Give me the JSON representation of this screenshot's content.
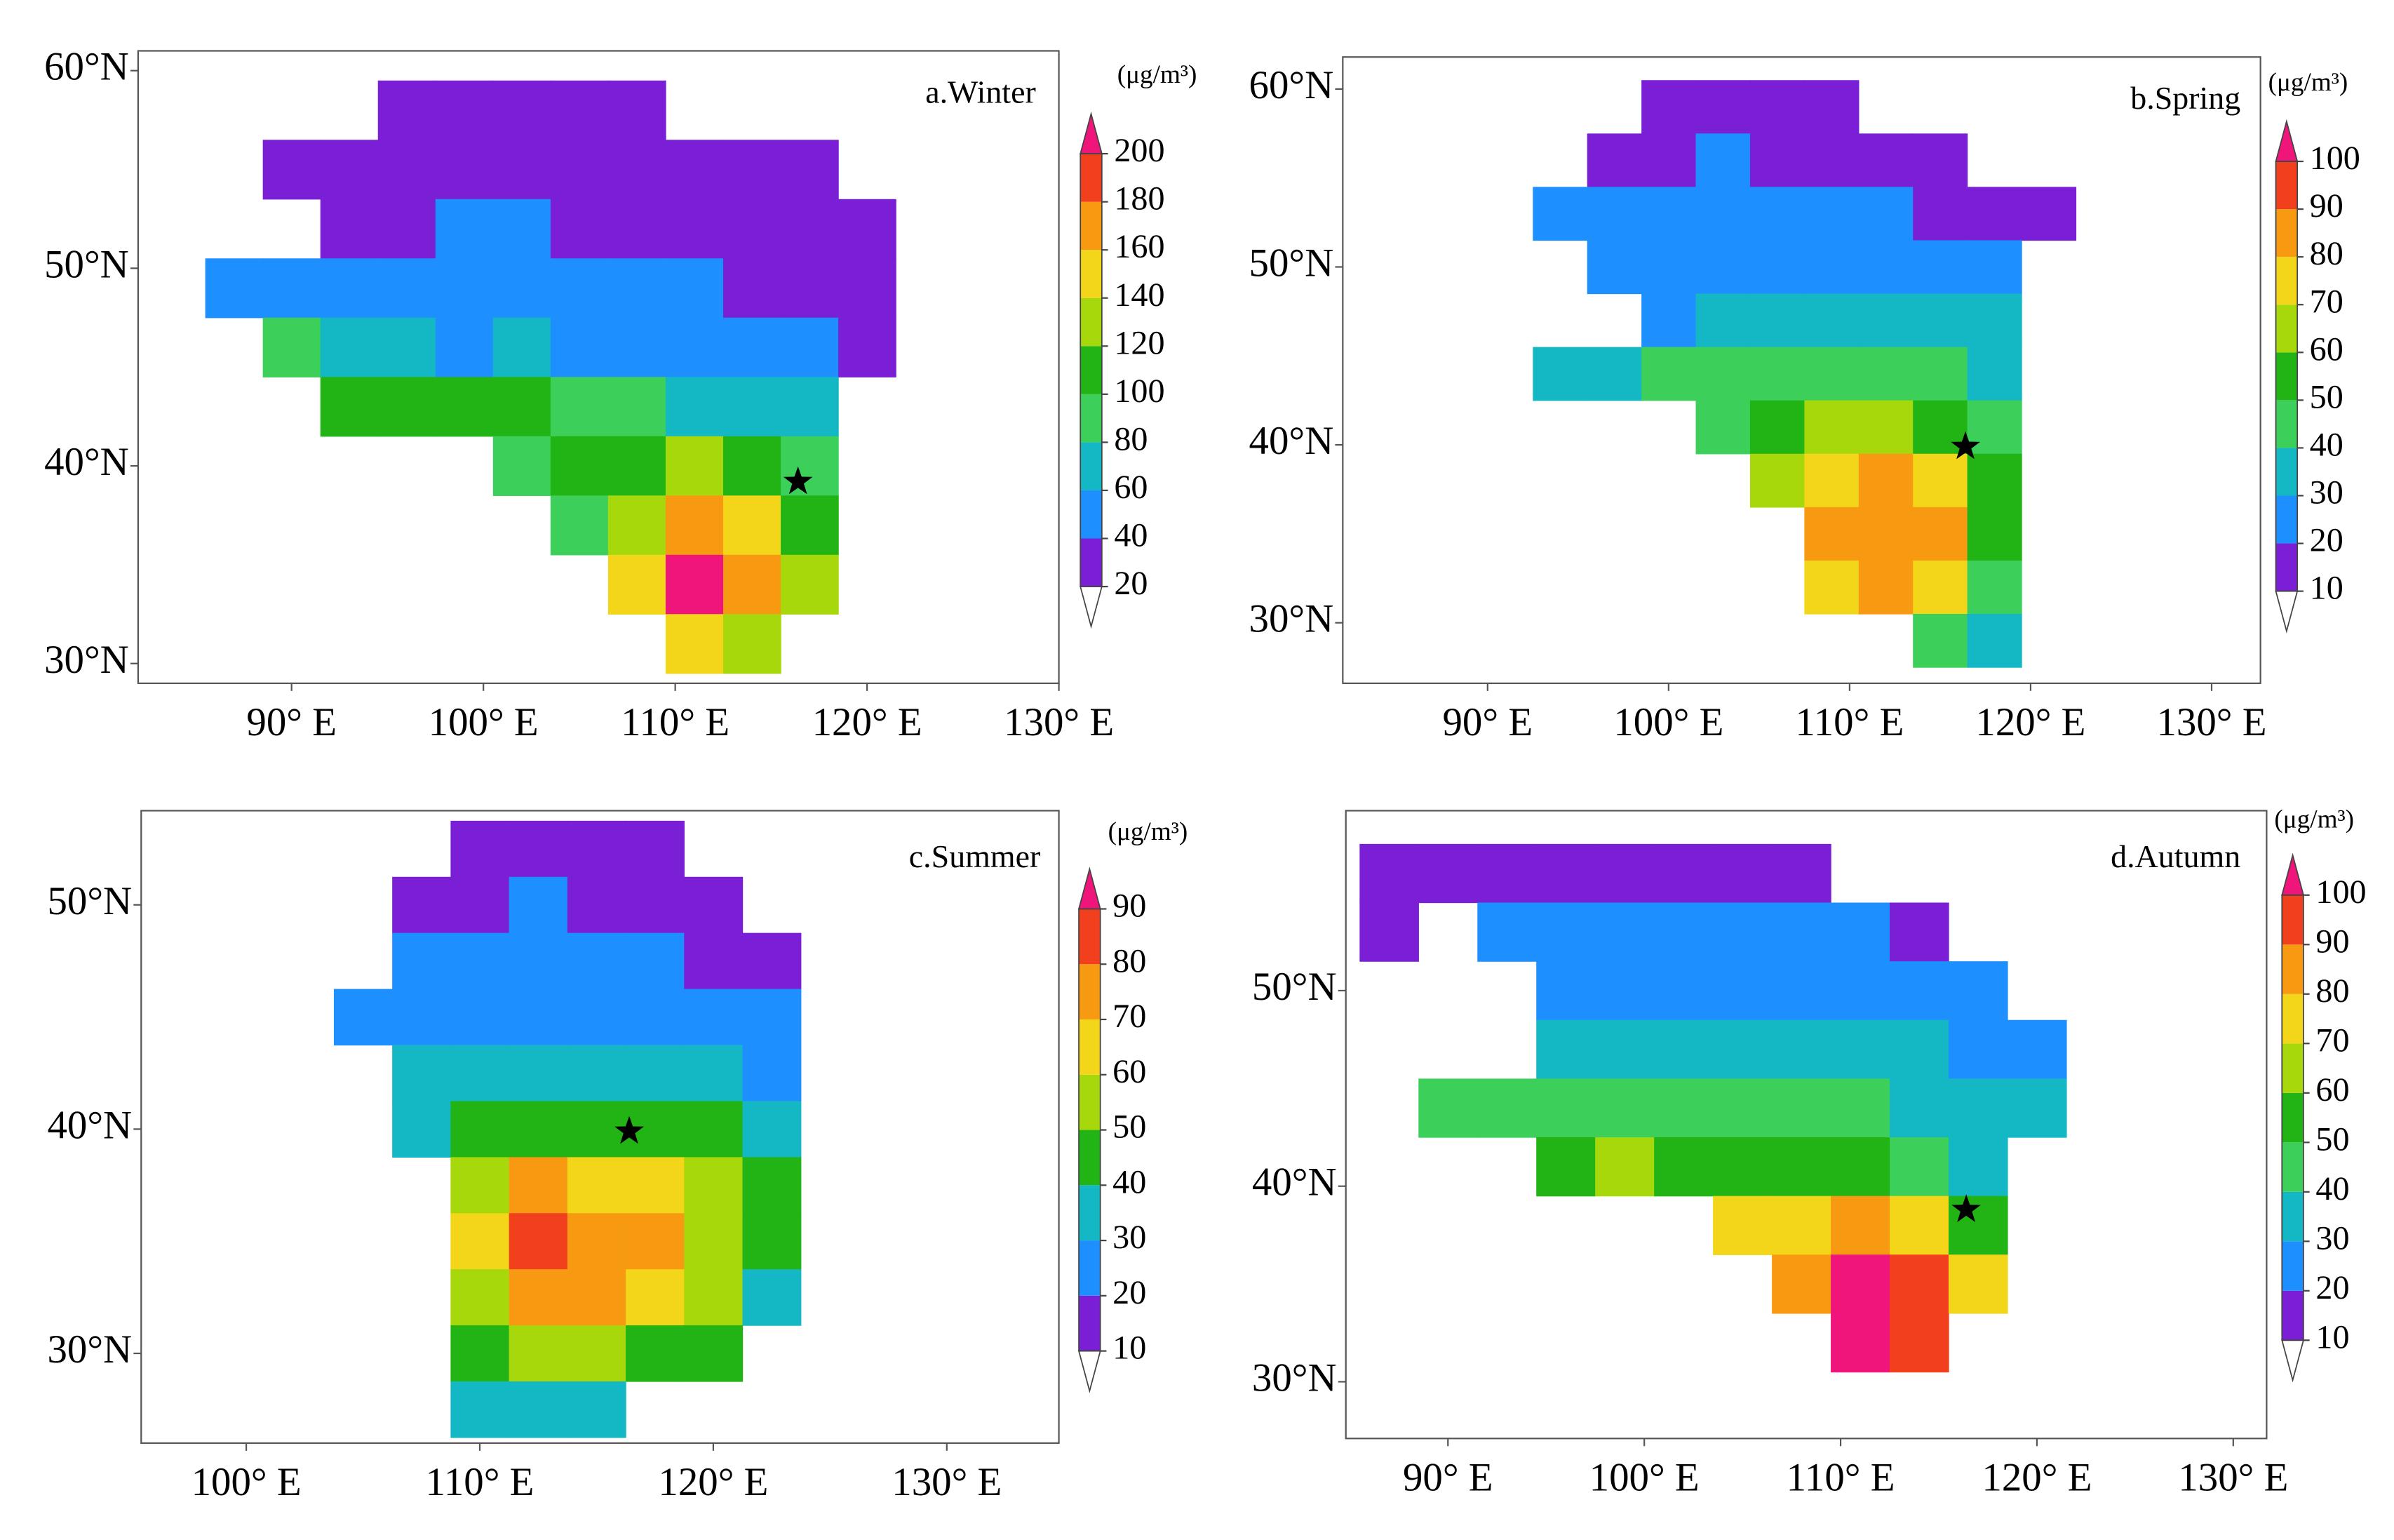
{
  "panels": [
    {
      "label": "a.Winter",
      "unit": "(μg/m³)",
      "xlim": [
        82,
        130
      ],
      "ylim": [
        29,
        61
      ],
      "xticks": [
        {
          "value": 90,
          "label": "90° E"
        },
        {
          "value": 100,
          "label": "100° E"
        },
        {
          "value": 110,
          "label": "110° E"
        },
        {
          "value": 120,
          "label": "120° E"
        },
        {
          "value": 130,
          "label": "130° E"
        }
      ],
      "yticks": [
        {
          "value": 30,
          "label": "30°N"
        },
        {
          "value": 40,
          "label": "40°N"
        },
        {
          "value": 50,
          "label": "50°N"
        },
        {
          "value": 60,
          "label": "60°N"
        }
      ],
      "levels": [
        20,
        40,
        60,
        80,
        100,
        120,
        140,
        160,
        180,
        200
      ],
      "colors": [
        "#7a1fd6",
        "#1e8fff",
        "#14b8c4",
        "#3ccf5a",
        "#22b414",
        "#a6d80c",
        "#f3d51a",
        "#f79a12",
        "#f2401e",
        "#f0157a"
      ],
      "cells": {
        "lon": [
          84,
          87,
          90,
          93,
          96,
          99,
          102,
          105,
          108,
          111,
          114,
          117,
          120,
          123,
          126
        ],
        "lat": [
          58,
          55,
          52,
          49,
          46,
          43,
          40,
          37,
          34,
          31
        ],
        "values": [
          [
            null,
            null,
            null,
            null,
            25,
            25,
            25,
            25,
            25,
            null,
            null,
            null,
            null,
            null,
            null
          ],
          [
            null,
            null,
            25,
            25,
            30,
            30,
            30,
            30,
            30,
            30,
            25,
            25,
            null,
            null,
            null
          ],
          [
            null,
            null,
            null,
            30,
            35,
            45,
            45,
            35,
            30,
            30,
            30,
            25,
            25,
            null,
            null
          ],
          [
            null,
            50,
            55,
            50,
            55,
            55,
            55,
            50,
            50,
            45,
            35,
            30,
            30,
            null,
            null
          ],
          [
            null,
            null,
            80,
            70,
            60,
            55,
            60,
            55,
            55,
            55,
            50,
            45,
            35,
            null,
            null
          ],
          [
            null,
            null,
            null,
            100,
            110,
            110,
            100,
            90,
            80,
            70,
            65,
            60,
            null,
            null,
            null
          ],
          [
            null,
            null,
            null,
            null,
            null,
            null,
            90,
            100,
            110,
            120,
            110,
            90,
            null,
            null,
            null
          ],
          [
            null,
            null,
            null,
            null,
            null,
            null,
            null,
            80,
            130,
            170,
            150,
            100,
            null,
            null,
            null
          ],
          [
            null,
            null,
            null,
            null,
            null,
            null,
            null,
            null,
            150,
            200,
            170,
            120,
            null,
            null,
            null
          ],
          [
            null,
            null,
            null,
            null,
            null,
            null,
            null,
            null,
            null,
            140,
            120,
            null,
            null,
            null,
            null
          ]
        ]
      },
      "site": {
        "lon": 116.4,
        "lat": 39.2
      }
    },
    {
      "label": "b.Spring",
      "unit": "(μg/m³)",
      "xlim": [
        82,
        132.7
      ],
      "ylim": [
        26.6,
        61.8
      ],
      "xticks": [
        {
          "value": 90,
          "label": "90° E"
        },
        {
          "value": 100,
          "label": "100° E"
        },
        {
          "value": 110,
          "label": "110° E"
        },
        {
          "value": 120,
          "label": "120° E"
        },
        {
          "value": 130,
          "label": "130° E"
        }
      ],
      "yticks": [
        {
          "value": 30,
          "label": "30°N"
        },
        {
          "value": 40,
          "label": "40°N"
        },
        {
          "value": 50,
          "label": "50°N"
        },
        {
          "value": 60,
          "label": "60°N"
        }
      ],
      "levels": [
        10,
        20,
        30,
        40,
        50,
        60,
        70,
        80,
        90,
        100
      ],
      "colors": [
        "#7a1fd6",
        "#1e8fff",
        "#14b8c4",
        "#3ccf5a",
        "#22b414",
        "#a6d80c",
        "#f3d51a",
        "#f79a12",
        "#f2401e",
        "#f0157a"
      ],
      "cells": {
        "lon": [
          85,
          88,
          91,
          94,
          97,
          100,
          103,
          106,
          109,
          112,
          115,
          118,
          121,
          124,
          127
        ],
        "lat": [
          59,
          56,
          53,
          50,
          47,
          44,
          41,
          38,
          35,
          32,
          29
        ],
        "values": [
          [
            null,
            null,
            null,
            null,
            null,
            15,
            15,
            15,
            15,
            null,
            null,
            null,
            null,
            null,
            null
          ],
          [
            null,
            null,
            null,
            null,
            15,
            15,
            20,
            15,
            15,
            15,
            15,
            null,
            null,
            null,
            null
          ],
          [
            null,
            null,
            null,
            25,
            20,
            20,
            20,
            25,
            20,
            20,
            15,
            15,
            15,
            null,
            null
          ],
          [
            null,
            null,
            null,
            null,
            25,
            25,
            25,
            25,
            25,
            25,
            20,
            20,
            null,
            null,
            null
          ],
          [
            null,
            null,
            null,
            null,
            null,
            25,
            30,
            30,
            35,
            35,
            30,
            30,
            null,
            null,
            null
          ],
          [
            null,
            null,
            null,
            30,
            35,
            40,
            40,
            45,
            45,
            45,
            40,
            35,
            null,
            null,
            null
          ],
          [
            null,
            null,
            null,
            null,
            null,
            null,
            45,
            55,
            60,
            60,
            55,
            45,
            null,
            null,
            null
          ],
          [
            null,
            null,
            null,
            null,
            null,
            null,
            null,
            60,
            75,
            85,
            70,
            50,
            null,
            null,
            null
          ],
          [
            null,
            null,
            null,
            null,
            null,
            null,
            null,
            null,
            85,
            85,
            80,
            55,
            null,
            null,
            null
          ],
          [
            null,
            null,
            null,
            null,
            null,
            null,
            null,
            null,
            75,
            80,
            70,
            40,
            null,
            null,
            null
          ],
          [
            null,
            null,
            null,
            null,
            null,
            null,
            null,
            null,
            null,
            null,
            40,
            30,
            null,
            null,
            null
          ]
        ]
      },
      "site": {
        "lon": 116.4,
        "lat": 39.9
      }
    },
    {
      "label": "c.Summer",
      "unit": "(μg/m³)",
      "xlim": [
        95.5,
        134.8
      ],
      "ylim": [
        26,
        54.2
      ],
      "xticks": [
        {
          "value": 100,
          "label": "100° E"
        },
        {
          "value": 110,
          "label": "110° E"
        },
        {
          "value": 120,
          "label": "120° E"
        },
        {
          "value": 130,
          "label": "130° E"
        }
      ],
      "yticks": [
        {
          "value": 30,
          "label": "30°N"
        },
        {
          "value": 40,
          "label": "40°N"
        },
        {
          "value": 50,
          "label": "50°N"
        }
      ],
      "levels": [
        10,
        20,
        30,
        40,
        50,
        60,
        70,
        80,
        90
      ],
      "colors": [
        "#7a1fd6",
        "#1e8fff",
        "#14b8c4",
        "#22b414",
        "#a6d80c",
        "#f3d51a",
        "#f79a12",
        "#f2401e",
        "#f0157a"
      ],
      "cells": {
        "lon": [
          100,
          102.5,
          105,
          107.5,
          110,
          112.5,
          115,
          117.5,
          120,
          122.5,
          125,
          127.5
        ],
        "lat": [
          52.5,
          50,
          47.5,
          45,
          42.5,
          40,
          37.5,
          35,
          32.5,
          30,
          27.5
        ],
        "values": [
          [
            null,
            null,
            null,
            null,
            15,
            15,
            15,
            15,
            null,
            null,
            null,
            null
          ],
          [
            null,
            null,
            null,
            15,
            15,
            20,
            15,
            15,
            15,
            null,
            null,
            null
          ],
          [
            null,
            null,
            null,
            20,
            25,
            20,
            20,
            20,
            15,
            15,
            null,
            null
          ],
          [
            null,
            null,
            25,
            25,
            25,
            25,
            25,
            25,
            25,
            20,
            null,
            null
          ],
          [
            null,
            null,
            null,
            30,
            35,
            35,
            35,
            30,
            30,
            25,
            null,
            null
          ],
          [
            null,
            null,
            null,
            35,
            40,
            45,
            45,
            45,
            40,
            35,
            null,
            null
          ],
          [
            null,
            null,
            null,
            null,
            50,
            70,
            65,
            60,
            50,
            40,
            null,
            null
          ],
          [
            null,
            null,
            null,
            null,
            60,
            80,
            75,
            70,
            55,
            40,
            null,
            null
          ],
          [
            null,
            null,
            null,
            null,
            55,
            75,
            70,
            65,
            50,
            35,
            null,
            null
          ],
          [
            null,
            null,
            null,
            null,
            45,
            50,
            55,
            45,
            40,
            null,
            null,
            null
          ],
          [
            null,
            null,
            null,
            null,
            30,
            30,
            35,
            null,
            null,
            null,
            null,
            null
          ]
        ]
      },
      "site": {
        "lon": 116.4,
        "lat": 39.9
      }
    },
    {
      "label": "d.Autumn",
      "unit": "(μg/m³)",
      "xlim": [
        84.8,
        131.7
      ],
      "ylim": [
        27.1,
        59.2
      ],
      "xticks": [
        {
          "value": 90,
          "label": "90° E"
        },
        {
          "value": 100,
          "label": "100° E"
        },
        {
          "value": 110,
          "label": "110° E"
        },
        {
          "value": 120,
          "label": "120° E"
        },
        {
          "value": 130,
          "label": "130° E"
        }
      ],
      "yticks": [
        {
          "value": 30,
          "label": "30°N"
        },
        {
          "value": 40,
          "label": "40°N"
        },
        {
          "value": 50,
          "label": "50°N"
        }
      ],
      "levels": [
        10,
        20,
        30,
        40,
        50,
        60,
        70,
        80,
        90,
        100
      ],
      "colors": [
        "#7a1fd6",
        "#1e8fff",
        "#14b8c4",
        "#3ccf5a",
        "#22b414",
        "#a6d80c",
        "#f3d51a",
        "#f79a12",
        "#f2401e",
        "#f0157a"
      ],
      "cells": {
        "lon": [
          87,
          90,
          93,
          96,
          99,
          102,
          105,
          108,
          111,
          114,
          117,
          120,
          123,
          126
        ],
        "lat": [
          56,
          53,
          50,
          47,
          44,
          41,
          38,
          35,
          32
        ],
        "values": [
          [
            15,
            15,
            15,
            15,
            15,
            15,
            15,
            15,
            null,
            null,
            null,
            null,
            null,
            null
          ],
          [
            15,
            null,
            20,
            20,
            20,
            20,
            20,
            20,
            20,
            15,
            null,
            null,
            null,
            null
          ],
          [
            null,
            null,
            null,
            25,
            25,
            25,
            25,
            25,
            25,
            20,
            20,
            null,
            null,
            null
          ],
          [
            null,
            null,
            null,
            30,
            30,
            30,
            30,
            30,
            30,
            30,
            25,
            20,
            null,
            null
          ],
          [
            null,
            40,
            45,
            45,
            40,
            40,
            40,
            40,
            40,
            35,
            35,
            30,
            null,
            null
          ],
          [
            null,
            null,
            null,
            55,
            60,
            55,
            55,
            55,
            50,
            45,
            35,
            null,
            null,
            null
          ],
          [
            null,
            null,
            null,
            null,
            null,
            null,
            70,
            70,
            80,
            70,
            55,
            null,
            null,
            null
          ],
          [
            null,
            null,
            null,
            null,
            null,
            null,
            null,
            80,
            100,
            90,
            70,
            null,
            null,
            null
          ],
          [
            null,
            null,
            null,
            null,
            null,
            null,
            null,
            null,
            100,
            90,
            null,
            null,
            null,
            null
          ]
        ]
      },
      "site": {
        "lon": 116.4,
        "lat": 38.8
      }
    }
  ]
}
